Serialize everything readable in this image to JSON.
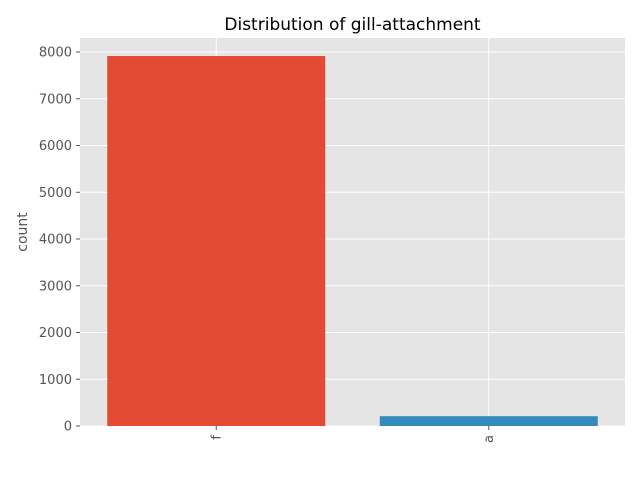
{
  "chart_data": {
    "type": "bar",
    "title": "Distribution of gill-attachment",
    "xlabel": "",
    "ylabel": "count",
    "categories": [
      "f",
      "a"
    ],
    "values": [
      7914,
      210
    ],
    "colors": [
      "#E24A33",
      "#348ABD"
    ],
    "ylim": [
      0,
      8300
    ],
    "yticks": [
      0,
      1000,
      2000,
      3000,
      4000,
      5000,
      6000,
      7000,
      8000
    ],
    "ytick_labels": [
      "0",
      "1000",
      "2000",
      "3000",
      "4000",
      "5000",
      "6000",
      "7000",
      "8000"
    ],
    "grid": true,
    "background": "#E5E5E5",
    "style": "ggplot"
  }
}
